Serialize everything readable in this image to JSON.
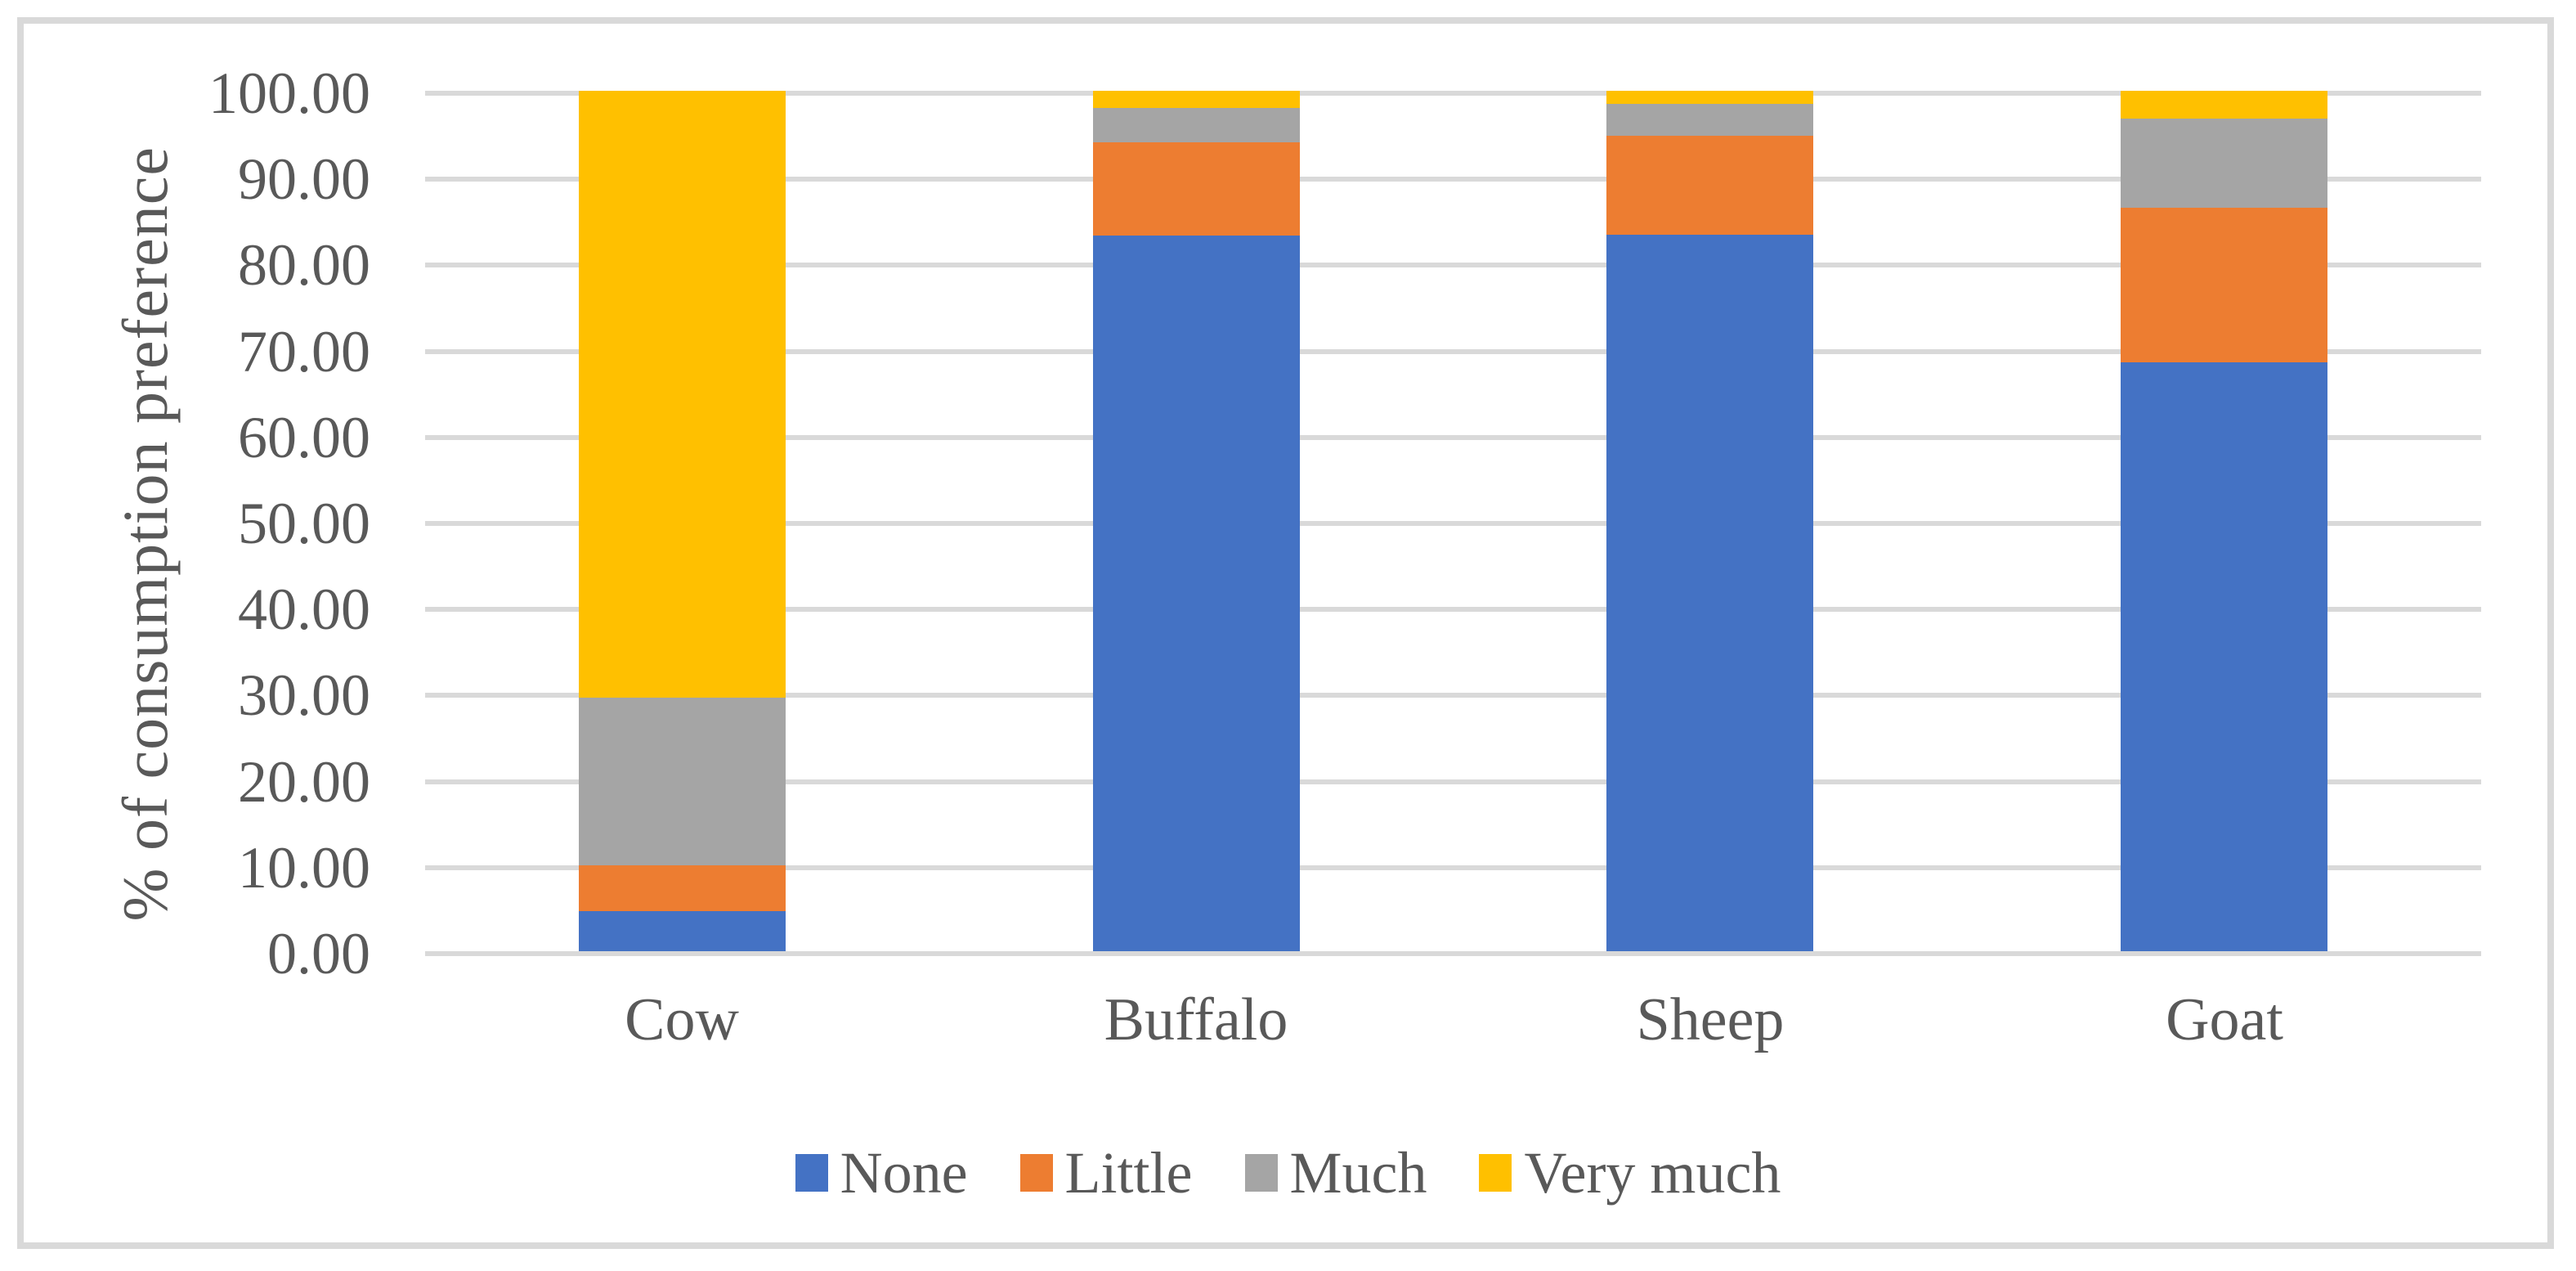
{
  "colors": {
    "background": "#FFFFFF",
    "frame_border": "#D9D9D9",
    "gridline": "#D9D9D9",
    "text": "#595959"
  },
  "chart_data": {
    "type": "bar",
    "stacked": true,
    "stacked_percent": true,
    "title": "",
    "categories": [
      "Cow",
      "Buffalo",
      "Sheep",
      "Goat"
    ],
    "series": [
      {
        "name": "None",
        "color": "#4472C4",
        "values": [
          4.7,
          83.2,
          83.3,
          68.4
        ]
      },
      {
        "name": "Little",
        "color": "#ED7D31",
        "values": [
          5.3,
          10.8,
          11.5,
          18.0
        ]
      },
      {
        "name": "Much",
        "color": "#A5A5A5",
        "values": [
          19.5,
          4.0,
          3.7,
          10.4
        ]
      },
      {
        "name": "Very much",
        "color": "#FFC000",
        "values": [
          70.5,
          2.0,
          1.5,
          3.2
        ]
      }
    ],
    "xlabel": "",
    "ylabel": "% of consumption preference",
    "ylim": [
      0,
      100
    ],
    "ytick_step": 10,
    "yticks": [
      "0.00",
      "10.00",
      "20.00",
      "30.00",
      "40.00",
      "50.00",
      "60.00",
      "70.00",
      "80.00",
      "90.00",
      "100.00"
    ],
    "grid": "horizontal",
    "legend_position": "bottom",
    "legend": [
      "None",
      "Little",
      "Much",
      "Very much"
    ]
  }
}
